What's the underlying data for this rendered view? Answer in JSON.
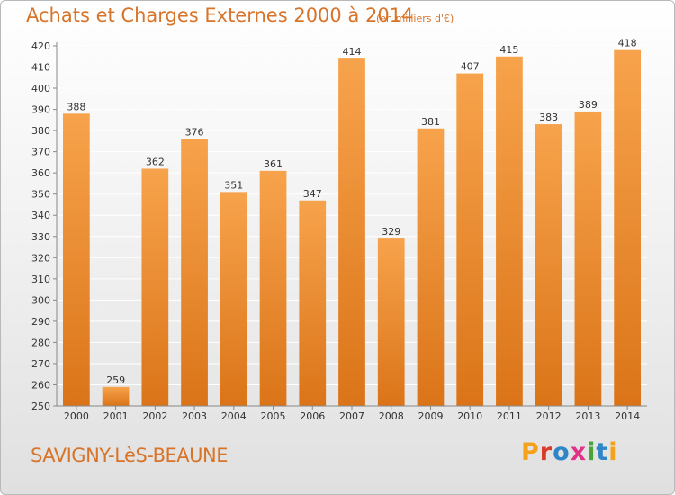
{
  "header": {
    "title": "Achats et Charges Externes 2000 à 2014",
    "unit": "(en milliers d'€)"
  },
  "footer": {
    "commune": "SAVIGNY-LèS-BEAUNE",
    "logo_text": "Proxiti",
    "logo_colors": [
      "#f4a21c",
      "#d93a2b",
      "#2f86c6",
      "#e1328a",
      "#4aa43a",
      "#2f86c6",
      "#f4a21c"
    ]
  },
  "colors": {
    "bar_light": "#f7a34c",
    "bar_dark": "#db7418",
    "grid": "#ffffff",
    "axis": "#888888",
    "text": "#333333",
    "brand": "#d8742a"
  },
  "chart_data": {
    "type": "bar",
    "categories": [
      "2000",
      "2001",
      "2002",
      "2003",
      "2004",
      "2005",
      "2006",
      "2007",
      "2008",
      "2009",
      "2010",
      "2011",
      "2012",
      "2013",
      "2014"
    ],
    "values": [
      388,
      259,
      362,
      376,
      351,
      361,
      347,
      414,
      329,
      381,
      407,
      415,
      383,
      389,
      418
    ],
    "title": "Achats et Charges Externes 2000 à 2014",
    "ylim": [
      250,
      420
    ],
    "yticks": [
      250,
      260,
      270,
      280,
      290,
      300,
      310,
      320,
      330,
      340,
      350,
      360,
      370,
      380,
      390,
      400,
      410,
      420
    ],
    "grid": true,
    "data_labels": true
  }
}
